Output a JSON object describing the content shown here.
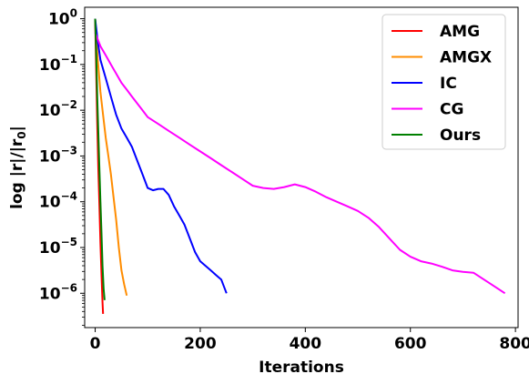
{
  "chart_data": {
    "type": "line",
    "xlabel": "Iterations",
    "ylabel": "log |r|/|r",
    "ylabel_sub": "0",
    "ylabel_end": "|",
    "xlim": [
      -20,
      805
    ],
    "ylim_log10": [
      -6.75,
      0.25
    ],
    "y_scale": "log",
    "legend_position": "top-right",
    "x_ticks": [
      {
        "value": 0,
        "label": "0"
      },
      {
        "value": 200,
        "label": "200"
      },
      {
        "value": 400,
        "label": "400"
      },
      {
        "value": 600,
        "label": "600"
      },
      {
        "value": 800,
        "label": "800"
      }
    ],
    "y_ticks": [
      {
        "exp": 0,
        "base": "10",
        "power": "0"
      },
      {
        "exp": -1,
        "base": "10",
        "power": "−1"
      },
      {
        "exp": -2,
        "base": "10",
        "power": "−2"
      },
      {
        "exp": -3,
        "base": "10",
        "power": "−3"
      },
      {
        "exp": -4,
        "base": "10",
        "power": "−4"
      },
      {
        "exp": -5,
        "base": "10",
        "power": "−5"
      },
      {
        "exp": -6,
        "base": "10",
        "power": "−6"
      }
    ],
    "series": [
      {
        "name": "AMG",
        "color": "#ff0000",
        "points": [
          [
            0,
            0
          ],
          [
            2,
            -1.2
          ],
          [
            4,
            -2.3
          ],
          [
            6,
            -3.3
          ],
          [
            8,
            -4.1
          ],
          [
            10,
            -4.9
          ],
          [
            12,
            -5.6
          ],
          [
            14,
            -6.2
          ],
          [
            15,
            -6.45
          ]
        ]
      },
      {
        "name": "AMGX",
        "color": "#ff8c00",
        "points": [
          [
            0,
            0
          ],
          [
            5,
            -0.9
          ],
          [
            10,
            -1.6
          ],
          [
            15,
            -2.1
          ],
          [
            20,
            -2.6
          ],
          [
            25,
            -3.0
          ],
          [
            30,
            -3.4
          ],
          [
            35,
            -3.9
          ],
          [
            40,
            -4.4
          ],
          [
            45,
            -5.0
          ],
          [
            50,
            -5.5
          ],
          [
            55,
            -5.8
          ],
          [
            60,
            -6.05
          ]
        ]
      },
      {
        "name": "IC",
        "color": "#0000ff",
        "points": [
          [
            0,
            0
          ],
          [
            5,
            -0.5
          ],
          [
            10,
            -0.9
          ],
          [
            20,
            -1.3
          ],
          [
            30,
            -1.7
          ],
          [
            40,
            -2.1
          ],
          [
            50,
            -2.4
          ],
          [
            60,
            -2.6
          ],
          [
            70,
            -2.8
          ],
          [
            80,
            -3.1
          ],
          [
            90,
            -3.4
          ],
          [
            100,
            -3.7
          ],
          [
            110,
            -3.75
          ],
          [
            120,
            -3.72
          ],
          [
            130,
            -3.72
          ],
          [
            140,
            -3.85
          ],
          [
            150,
            -4.1
          ],
          [
            160,
            -4.3
          ],
          [
            170,
            -4.5
          ],
          [
            180,
            -4.8
          ],
          [
            190,
            -5.1
          ],
          [
            200,
            -5.3
          ],
          [
            210,
            -5.4
          ],
          [
            220,
            -5.5
          ],
          [
            230,
            -5.6
          ],
          [
            240,
            -5.7
          ],
          [
            250,
            -6.0
          ]
        ]
      },
      {
        "name": "CG",
        "color": "#ff00ff",
        "points": [
          [
            0,
            -0.3
          ],
          [
            10,
            -0.6
          ],
          [
            20,
            -0.8
          ],
          [
            30,
            -1.0
          ],
          [
            40,
            -1.2
          ],
          [
            50,
            -1.4
          ],
          [
            60,
            -1.55
          ],
          [
            70,
            -1.7
          ],
          [
            80,
            -1.85
          ],
          [
            90,
            -2.0
          ],
          [
            100,
            -2.15
          ],
          [
            120,
            -2.3
          ],
          [
            140,
            -2.45
          ],
          [
            160,
            -2.6
          ],
          [
            180,
            -2.75
          ],
          [
            200,
            -2.9
          ],
          [
            220,
            -3.05
          ],
          [
            240,
            -3.2
          ],
          [
            260,
            -3.35
          ],
          [
            280,
            -3.5
          ],
          [
            300,
            -3.65
          ],
          [
            320,
            -3.7
          ],
          [
            340,
            -3.72
          ],
          [
            360,
            -3.68
          ],
          [
            380,
            -3.62
          ],
          [
            400,
            -3.68
          ],
          [
            420,
            -3.78
          ],
          [
            440,
            -3.9
          ],
          [
            460,
            -4.0
          ],
          [
            480,
            -4.1
          ],
          [
            500,
            -4.2
          ],
          [
            520,
            -4.35
          ],
          [
            540,
            -4.55
          ],
          [
            560,
            -4.8
          ],
          [
            580,
            -5.05
          ],
          [
            600,
            -5.2
          ],
          [
            620,
            -5.3
          ],
          [
            640,
            -5.35
          ],
          [
            660,
            -5.42
          ],
          [
            680,
            -5.5
          ],
          [
            700,
            -5.53
          ],
          [
            720,
            -5.55
          ],
          [
            740,
            -5.7
          ],
          [
            760,
            -5.85
          ],
          [
            780,
            -6.0
          ]
        ]
      },
      {
        "name": "Ours",
        "color": "#008000",
        "points": [
          [
            0,
            0
          ],
          [
            2,
            -0.8
          ],
          [
            4,
            -1.7
          ],
          [
            6,
            -2.5
          ],
          [
            8,
            -3.3
          ],
          [
            10,
            -4.0
          ],
          [
            12,
            -4.7
          ],
          [
            14,
            -5.4
          ],
          [
            16,
            -5.9
          ],
          [
            18,
            -6.15
          ]
        ]
      }
    ]
  }
}
